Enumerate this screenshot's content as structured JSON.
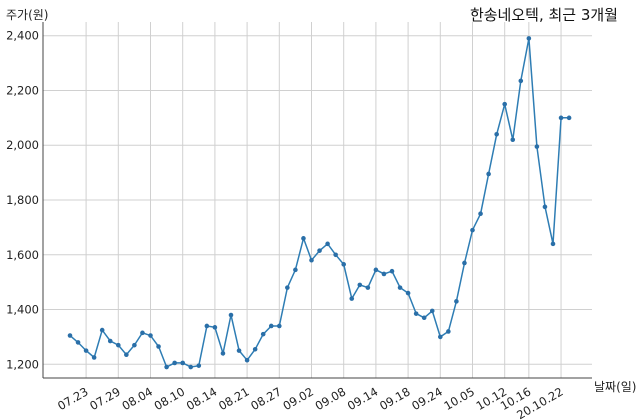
{
  "chart_data": {
    "type": "line",
    "title": "한송네오텍, 최근 3개월",
    "ylabel": "주가(원)",
    "xlabel": "날짜(일)",
    "ylim": [
      1150,
      2450
    ],
    "yticks": [
      1200,
      1400,
      1600,
      1800,
      2000,
      2200,
      2400
    ],
    "ytick_labels": [
      "1,200",
      "1,400",
      "1,600",
      "1,800",
      "2,000",
      "2,200",
      "2,400"
    ],
    "grid": true,
    "xtick_labels": [
      "07.23",
      "07.29",
      "08.04",
      "08.10",
      "08.14",
      "08.21",
      "08.27",
      "09.02",
      "09.08",
      "09.14",
      "09.18",
      "09.24",
      "10.05",
      "10.12",
      "10.16",
      "20.10.22"
    ],
    "xtick_index": [
      2,
      6,
      10,
      14,
      18,
      22,
      26,
      30,
      34,
      38,
      42,
      46,
      50,
      54,
      57,
      61
    ],
    "values": [
      1305,
      1280,
      1250,
      1225,
      1325,
      1285,
      1270,
      1235,
      1270,
      1315,
      1305,
      1265,
      1190,
      1205,
      1205,
      1190,
      1195,
      1340,
      1335,
      1240,
      1380,
      1250,
      1215,
      1255,
      1310,
      1340,
      1340,
      1480,
      1545,
      1660,
      1580,
      1615,
      1640,
      1600,
      1565,
      1440,
      1490,
      1480,
      1545,
      1530,
      1540,
      1480,
      1460,
      1385,
      1370,
      1395,
      1300,
      1320,
      1430,
      1570,
      1690,
      1750,
      1895,
      2040,
      2150,
      2020,
      2235,
      2390,
      1995,
      1775,
      1640,
      2100,
      2100
    ]
  }
}
